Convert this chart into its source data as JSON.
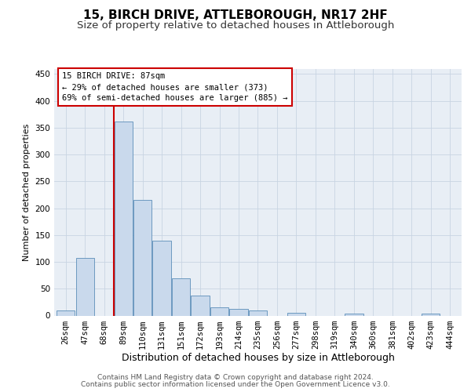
{
  "title1": "15, BIRCH DRIVE, ATTLEBOROUGH, NR17 2HF",
  "title2": "Size of property relative to detached houses in Attleborough",
  "xlabel": "Distribution of detached houses by size in Attleborough",
  "ylabel": "Number of detached properties",
  "footer1": "Contains HM Land Registry data © Crown copyright and database right 2024.",
  "footer2": "Contains public sector information licensed under the Open Government Licence v3.0.",
  "annotation_title": "15 BIRCH DRIVE: 87sqm",
  "annotation_line1": "← 29% of detached houses are smaller (373)",
  "annotation_line2": "69% of semi-detached houses are larger (885) →",
  "bar_categories": [
    "26sqm",
    "47sqm",
    "68sqm",
    "89sqm",
    "110sqm",
    "131sqm",
    "151sqm",
    "172sqm",
    "193sqm",
    "214sqm",
    "235sqm",
    "256sqm",
    "277sqm",
    "298sqm",
    "319sqm",
    "340sqm",
    "360sqm",
    "381sqm",
    "402sqm",
    "423sqm",
    "444sqm"
  ],
  "bar_values": [
    10,
    107,
    0,
    362,
    215,
    140,
    70,
    37,
    15,
    13,
    9,
    0,
    5,
    0,
    0,
    3,
    0,
    0,
    0,
    3,
    0
  ],
  "bar_color": "#c9d9ec",
  "bar_edge_color": "#5b8db8",
  "vline_color": "#cc0000",
  "vline_x_idx": 3,
  "ylim": [
    0,
    460
  ],
  "yticks": [
    0,
    50,
    100,
    150,
    200,
    250,
    300,
    350,
    400,
    450
  ],
  "grid_color": "#c8d4e3",
  "bg_color": "#e8eef5",
  "annotation_box_facecolor": "#ffffff",
  "annotation_box_edgecolor": "#cc0000",
  "title1_fontsize": 11,
  "title2_fontsize": 9.5,
  "xlabel_fontsize": 9,
  "ylabel_fontsize": 8,
  "tick_fontsize": 7.5,
  "annotation_fontsize": 7.5,
  "footer_fontsize": 6.5
}
